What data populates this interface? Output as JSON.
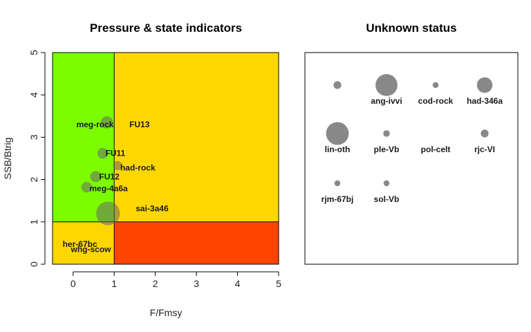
{
  "chart_data": [
    {
      "type": "scatter",
      "title": "Pressure & state indicators",
      "xlabel": "F/Fmsy",
      "ylabel": "SSB/Btrig",
      "xlim": [
        -0.5,
        5
      ],
      "ylim": [
        0,
        5
      ],
      "xticks": [
        "0",
        "1",
        "2",
        "3",
        "4",
        "5"
      ],
      "yticks": [
        "0",
        "1",
        "2",
        "3",
        "4",
        "5"
      ],
      "grid": false,
      "thresholds": {
        "x": 1,
        "y": 1
      },
      "zone_colors": {
        "green": "#7cfc00",
        "yellow": "#ffd700",
        "red": "#ff4500"
      },
      "marker_color": "#666666",
      "points": [
        {
          "name": "meg-rock",
          "x": 0.82,
          "y": 3.35,
          "size": 1.6
        },
        {
          "name": "FU13",
          "x": 1.2,
          "y": 3.3,
          "size": 0
        },
        {
          "name": "FU11",
          "x": 0.72,
          "y": 2.62,
          "size": 1.2
        },
        {
          "name": "had-rock",
          "x": 1.08,
          "y": 2.33,
          "size": 0.9
        },
        {
          "name": "FU12",
          "x": 0.55,
          "y": 2.07,
          "size": 1.3
        },
        {
          "name": "meg-4a6a",
          "x": 0.33,
          "y": 1.82,
          "size": 1.2
        },
        {
          "name": "sai-3a46",
          "x": 0.85,
          "y": 1.2,
          "size": 6.0
        },
        {
          "name": "her-67bc",
          "x": 0.2,
          "y": 0.47,
          "size": 0
        },
        {
          "name": "whg-scow",
          "x": 0.4,
          "y": 0.35,
          "size": 0
        }
      ]
    },
    {
      "type": "scatter",
      "title": "Unknown status",
      "marker_color": "#888888",
      "points": [
        {
          "name": "",
          "size": 0.35
        },
        {
          "name": "ang-ivvi",
          "size": 2.8
        },
        {
          "name": "cod-rock",
          "size": 0.2
        },
        {
          "name": "had-346a",
          "size": 1.4
        },
        {
          "name": "lin-oth",
          "size": 3.0
        },
        {
          "name": "ple-Vb",
          "size": 0.25
        },
        {
          "name": "pol-celt",
          "size": 0
        },
        {
          "name": "rjc-VI",
          "size": 0.35
        },
        {
          "name": "rjm-67bj",
          "size": 0.2
        },
        {
          "name": "sol-Vb",
          "size": 0.2
        }
      ]
    }
  ]
}
